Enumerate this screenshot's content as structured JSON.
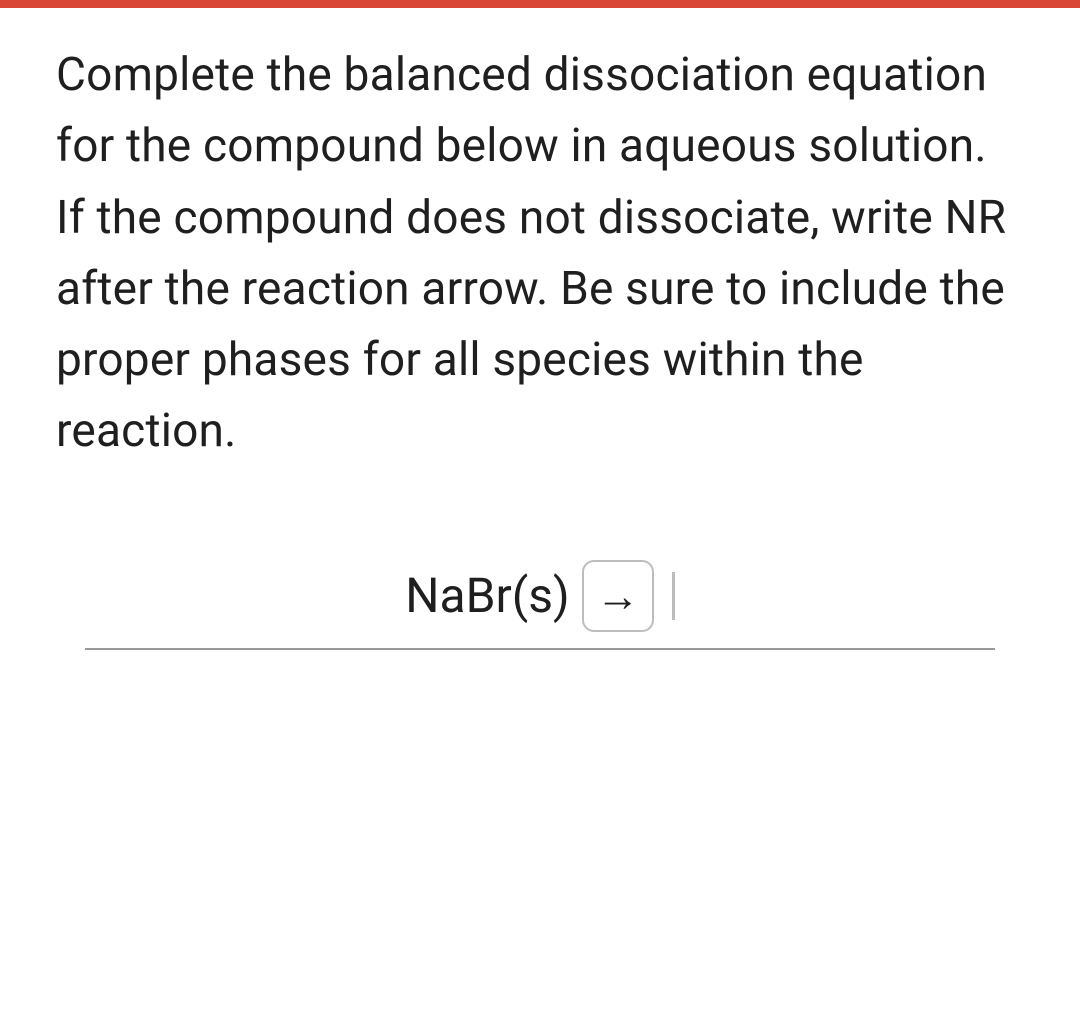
{
  "colors": {
    "topBar": "#d94636",
    "background": "#ffffff",
    "text": "#1f1f1f",
    "ruleLine": "#9a9a9a",
    "boxBorder": "#bdbdbd",
    "caret": "#bcbcbc"
  },
  "typography": {
    "questionFontSize": 46,
    "equationFontSize": 48,
    "fontFamily": "Roboto, Arial, sans-serif",
    "lineHeight": 1.55
  },
  "question": {
    "text": "Complete the balanced dissociation equation for the compound below in aqueous solution. If the compound does not dissociate, write NR after the reaction arrow. Be sure to include the proper phases for all species within the reaction."
  },
  "equation": {
    "reactant": "NaBr(s)",
    "arrowSymbol": "→",
    "productInput": ""
  }
}
